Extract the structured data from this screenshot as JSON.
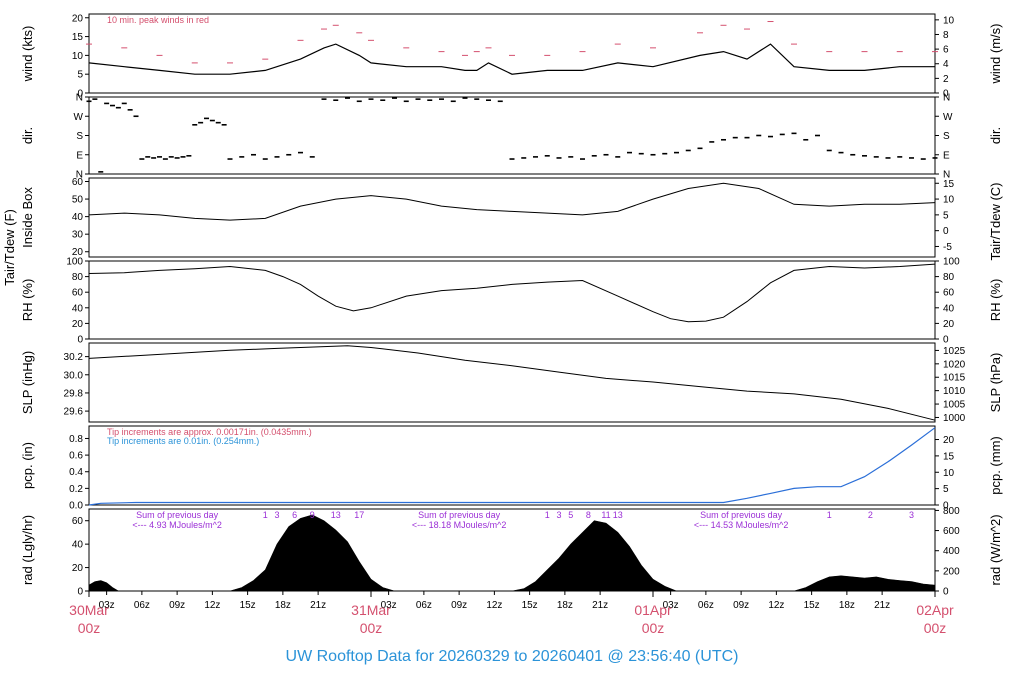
{
  "footer_title": "UW Rooftop Data for 20260329  to  20260401 @ 23:56:40  (UTC)",
  "colors": {
    "peak": "#d4506e",
    "tip_fine": "#d4506e",
    "tip_coarse": "#2b93d8",
    "pcp_line": "#2b6fd8",
    "solar_note": "#9b2fd6",
    "day_label": "#d4506e",
    "footer": "#2b93d8"
  },
  "chart_data": [
    {
      "type": "line",
      "id": "wind",
      "ylabel_left": "wind (kts)",
      "ylabel_right": "wind (m/s)",
      "yticks_left": [
        "0",
        "5",
        "10",
        "15",
        "20"
      ],
      "ylim_left": [
        0,
        21
      ],
      "yticks_right": [
        "0",
        "2",
        "4",
        "6",
        "8",
        "10"
      ],
      "ylim_right": [
        0,
        10.8
      ],
      "annotation": "10 min. peak winds in red",
      "series": [
        {
          "kind": "mean",
          "x": [
            0,
            6,
            12,
            18,
            24,
            30,
            36,
            40,
            42,
            46,
            48,
            54,
            60,
            64,
            66,
            68,
            72,
            78,
            84,
            90,
            96,
            104,
            108,
            112,
            116,
            120,
            126,
            132,
            138,
            144
          ],
          "y": [
            8,
            7,
            6,
            5,
            5,
            6,
            9,
            12,
            13,
            10,
            8,
            7,
            7,
            6,
            6,
            8,
            5,
            6,
            6,
            8,
            7,
            10,
            11,
            9,
            13,
            7,
            6,
            6,
            7,
            7
          ]
        },
        {
          "kind": "peak",
          "x": [
            0,
            6,
            12,
            18,
            24,
            30,
            36,
            40,
            42,
            46,
            48,
            54,
            60,
            64,
            66,
            68,
            72,
            78,
            84,
            90,
            96,
            104,
            108,
            112,
            116,
            120,
            126,
            132,
            138,
            144
          ],
          "y": [
            13,
            12,
            10,
            8,
            8,
            9,
            14,
            17,
            18,
            16,
            14,
            12,
            11,
            10,
            11,
            12,
            10,
            10,
            11,
            13,
            12,
            16,
            18,
            17,
            19,
            13,
            11,
            11,
            11,
            11
          ]
        }
      ]
    },
    {
      "type": "scatter",
      "id": "dir",
      "ylabel_left": "dir.",
      "yticks_left": [
        "N",
        "E",
        "S",
        "W",
        "N"
      ],
      "yticks_right": [
        "N",
        "E",
        "S",
        "W",
        "N"
      ],
      "ylim": [
        0,
        360
      ],
      "series": [
        {
          "x": [
            0,
            1,
            2,
            3,
            4,
            5,
            6,
            7,
            8,
            9,
            10,
            11,
            12,
            13,
            14,
            15,
            16,
            17,
            18,
            19,
            20,
            21,
            22,
            23,
            24,
            26,
            28,
            30,
            32,
            34,
            36,
            38,
            40,
            42,
            44,
            46,
            48,
            50,
            52,
            54,
            56,
            58,
            60,
            62,
            64,
            66,
            68,
            70,
            72,
            74,
            76,
            78,
            80,
            82,
            84,
            86,
            88,
            90,
            92,
            94,
            96,
            98,
            100,
            102,
            104,
            106,
            108,
            110,
            112,
            114,
            116,
            118,
            120,
            122,
            124,
            126,
            128,
            130,
            132,
            134,
            136,
            138,
            140,
            142,
            144
          ],
          "y": [
            340,
            350,
            10,
            330,
            320,
            310,
            330,
            300,
            270,
            70,
            80,
            75,
            80,
            70,
            80,
            75,
            80,
            85,
            230,
            240,
            260,
            250,
            240,
            230,
            70,
            80,
            90,
            70,
            80,
            90,
            100,
            80,
            350,
            345,
            355,
            340,
            350,
            345,
            355,
            340,
            350,
            345,
            350,
            340,
            355,
            350,
            345,
            340,
            70,
            75,
            80,
            85,
            75,
            80,
            70,
            85,
            90,
            80,
            100,
            95,
            90,
            95,
            100,
            110,
            120,
            150,
            160,
            170,
            170,
            180,
            175,
            185,
            190,
            160,
            180,
            110,
            100,
            90,
            85,
            80,
            75,
            80,
            75,
            70,
            75
          ]
        }
      ]
    },
    {
      "type": "line",
      "id": "temp",
      "ylabel_left": "Tair/Tdew (F)",
      "ylabel_left2": "Inside Box",
      "ylabel_right": "Tair/Tdew (C)",
      "yticks_left": [
        "20",
        "30",
        "40",
        "50",
        "60"
      ],
      "ylim_left": [
        17,
        62
      ],
      "yticks_right": [
        "-5",
        "0",
        "5",
        "10",
        "15"
      ],
      "series": [
        {
          "x": [
            0,
            6,
            12,
            18,
            24,
            30,
            36,
            42,
            48,
            54,
            60,
            66,
            72,
            78,
            84,
            90,
            96,
            102,
            108,
            114,
            120,
            126,
            132,
            138,
            144
          ],
          "y": [
            41,
            42,
            41,
            39,
            38,
            39,
            46,
            50,
            52,
            50,
            46,
            44,
            43,
            42,
            41,
            43,
            50,
            56,
            59,
            56,
            47,
            46,
            47,
            47,
            48
          ]
        }
      ]
    },
    {
      "type": "line",
      "id": "rh",
      "ylabel_left": "RH (%)",
      "ylabel_right": "RH (%)",
      "yticks": [
        "0",
        "20",
        "40",
        "60",
        "80",
        "100"
      ],
      "ylim": [
        0,
        100
      ],
      "series": [
        {
          "x": [
            0,
            6,
            12,
            18,
            24,
            30,
            33,
            36,
            39,
            42,
            45,
            48,
            54,
            60,
            66,
            72,
            78,
            84,
            90,
            96,
            99,
            102,
            105,
            108,
            112,
            116,
            120,
            126,
            132,
            138,
            144
          ],
          "y": [
            84,
            85,
            88,
            90,
            93,
            88,
            80,
            70,
            55,
            42,
            36,
            40,
            55,
            62,
            65,
            70,
            73,
            75,
            55,
            35,
            26,
            22,
            23,
            28,
            48,
            72,
            88,
            93,
            91,
            93,
            96
          ]
        }
      ]
    },
    {
      "type": "line",
      "id": "slp",
      "ylabel_left": "SLP (inHg)",
      "ylabel_right": "SLP (hPa)",
      "yticks_left": [
        "29.6",
        "29.8",
        "30.0",
        "30.2"
      ],
      "ylim_left": [
        29.48,
        30.35
      ],
      "yticks_right": [
        "1000",
        "1005",
        "1010",
        "1015",
        "1020",
        "1025"
      ],
      "series": [
        {
          "x": [
            0,
            8,
            16,
            24,
            32,
            40,
            44,
            48,
            56,
            64,
            72,
            80,
            88,
            96,
            104,
            112,
            120,
            128,
            136,
            144
          ],
          "y": [
            30.18,
            30.21,
            30.24,
            30.27,
            30.29,
            30.31,
            30.32,
            30.3,
            30.24,
            30.16,
            30.1,
            30.03,
            29.96,
            29.92,
            29.87,
            29.82,
            29.79,
            29.73,
            29.63,
            29.5
          ]
        }
      ]
    },
    {
      "type": "line",
      "id": "pcp",
      "ylabel_left": "pcp. (in)",
      "ylabel_right": "pcp. (mm)",
      "yticks_left": [
        "0.0",
        "0.2",
        "0.4",
        "0.6",
        "0.8"
      ],
      "ylim_left": [
        0,
        0.95
      ],
      "yticks_right": [
        "0",
        "5",
        "10",
        "15",
        "20"
      ],
      "notes": [
        "Tip increments are approx. 0.00171in. (0.0435mm.)",
        "Tip increments are 0.01in. (0.254mm.)"
      ],
      "series": [
        {
          "x": [
            0,
            2,
            8,
            16,
            24,
            48,
            72,
            96,
            104,
            108,
            112,
            116,
            120,
            124,
            128,
            132,
            136,
            140,
            144
          ],
          "y": [
            0.0,
            0.02,
            0.03,
            0.03,
            0.03,
            0.03,
            0.03,
            0.03,
            0.03,
            0.03,
            0.08,
            0.14,
            0.2,
            0.22,
            0.22,
            0.34,
            0.52,
            0.72,
            0.93
          ]
        }
      ]
    },
    {
      "type": "area",
      "id": "rad",
      "ylabel_left": "rad (Lgly/hr)",
      "ylabel_right": "rad (W/m^2)",
      "yticks_left": [
        "0",
        "20",
        "40",
        "60"
      ],
      "ylim_left": [
        0,
        70
      ],
      "yticks_right": [
        "0",
        "200",
        "400",
        "600",
        "800"
      ],
      "hour_marks": [
        {
          "label": "1",
          "x": 30
        },
        {
          "label": "3",
          "x": 32
        },
        {
          "label": "6",
          "x": 35
        },
        {
          "label": "9",
          "x": 38
        },
        {
          "label": "13",
          "x": 42
        },
        {
          "label": "17",
          "x": 46
        },
        {
          "label": "1",
          "x": 78
        },
        {
          "label": "3",
          "x": 80
        },
        {
          "label": "5",
          "x": 82
        },
        {
          "label": "8",
          "x": 85
        },
        {
          "label": "11",
          "x": 88
        },
        {
          "label": "13",
          "x": 90
        },
        {
          "label": "1",
          "x": 126
        },
        {
          "label": "2",
          "x": 133
        },
        {
          "label": "3",
          "x": 140
        }
      ],
      "day_notes": [
        {
          "title": "Sum of previous day",
          "value": "<--- 4.93 MJoules/m^2",
          "x": 15
        },
        {
          "title": "Sum of previous day",
          "value": "<--- 18.18 MJoules/m^2",
          "x": 63
        },
        {
          "title": "Sum of previous day",
          "value": "<--- 14.53 MJoules/m^2",
          "x": 111
        }
      ],
      "series": [
        {
          "x": [
            0,
            1,
            2,
            3,
            4,
            5,
            6,
            24,
            26,
            28,
            30,
            32,
            34,
            36,
            38,
            40,
            42,
            44,
            46,
            48,
            50,
            52,
            72,
            74,
            76,
            78,
            80,
            82,
            84,
            86,
            88,
            90,
            92,
            94,
            96,
            98,
            100,
            120,
            122,
            124,
            126,
            128,
            130,
            132,
            134,
            136,
            138,
            140,
            142,
            144
          ],
          "y": [
            5,
            8,
            9,
            7,
            3,
            0,
            0,
            0,
            3,
            9,
            18,
            40,
            55,
            62,
            65,
            60,
            52,
            42,
            25,
            10,
            3,
            0,
            0,
            2,
            8,
            18,
            28,
            40,
            50,
            60,
            58,
            50,
            38,
            22,
            10,
            4,
            0,
            0,
            3,
            8,
            12,
            13,
            12,
            11,
            12,
            10,
            9,
            8,
            6,
            5
          ]
        }
      ]
    }
  ],
  "time_axis": {
    "xlim": [
      0,
      144
    ],
    "hour_ticks": [
      {
        "x": 3,
        "label": "03z"
      },
      {
        "x": 9,
        "label": "06z"
      },
      {
        "x": 15,
        "label": "09z"
      },
      {
        "x": 21,
        "label": "12z"
      },
      {
        "x": 27,
        "label": "15z"
      },
      {
        "x": 33,
        "label": "18z"
      },
      {
        "x": 39,
        "label": "21z"
      },
      {
        "x": 51,
        "label": "03z"
      },
      {
        "x": 57,
        "label": "06z"
      },
      {
        "x": 63,
        "label": "09z"
      },
      {
        "x": 69,
        "label": "12z"
      },
      {
        "x": 75,
        "label": "15z"
      },
      {
        "x": 81,
        "label": "18z"
      },
      {
        "x": 87,
        "label": "21z"
      },
      {
        "x": 99,
        "label": "03z"
      },
      {
        "x": 105,
        "label": "06z"
      },
      {
        "x": 111,
        "label": "09z"
      },
      {
        "x": 117,
        "label": "12z"
      },
      {
        "x": 123,
        "label": "15z"
      },
      {
        "x": 129,
        "label": "18z"
      },
      {
        "x": 135,
        "label": "21z"
      }
    ],
    "day_ticks": [
      {
        "x": 0,
        "date": "30Mar",
        "hour": "00z"
      },
      {
        "x": 48,
        "date": "31Mar",
        "hour": "00z"
      },
      {
        "x": 96,
        "date": "01Apr",
        "hour": "00z"
      },
      {
        "x": 144,
        "date": "02Apr",
        "hour": "00z"
      }
    ]
  }
}
